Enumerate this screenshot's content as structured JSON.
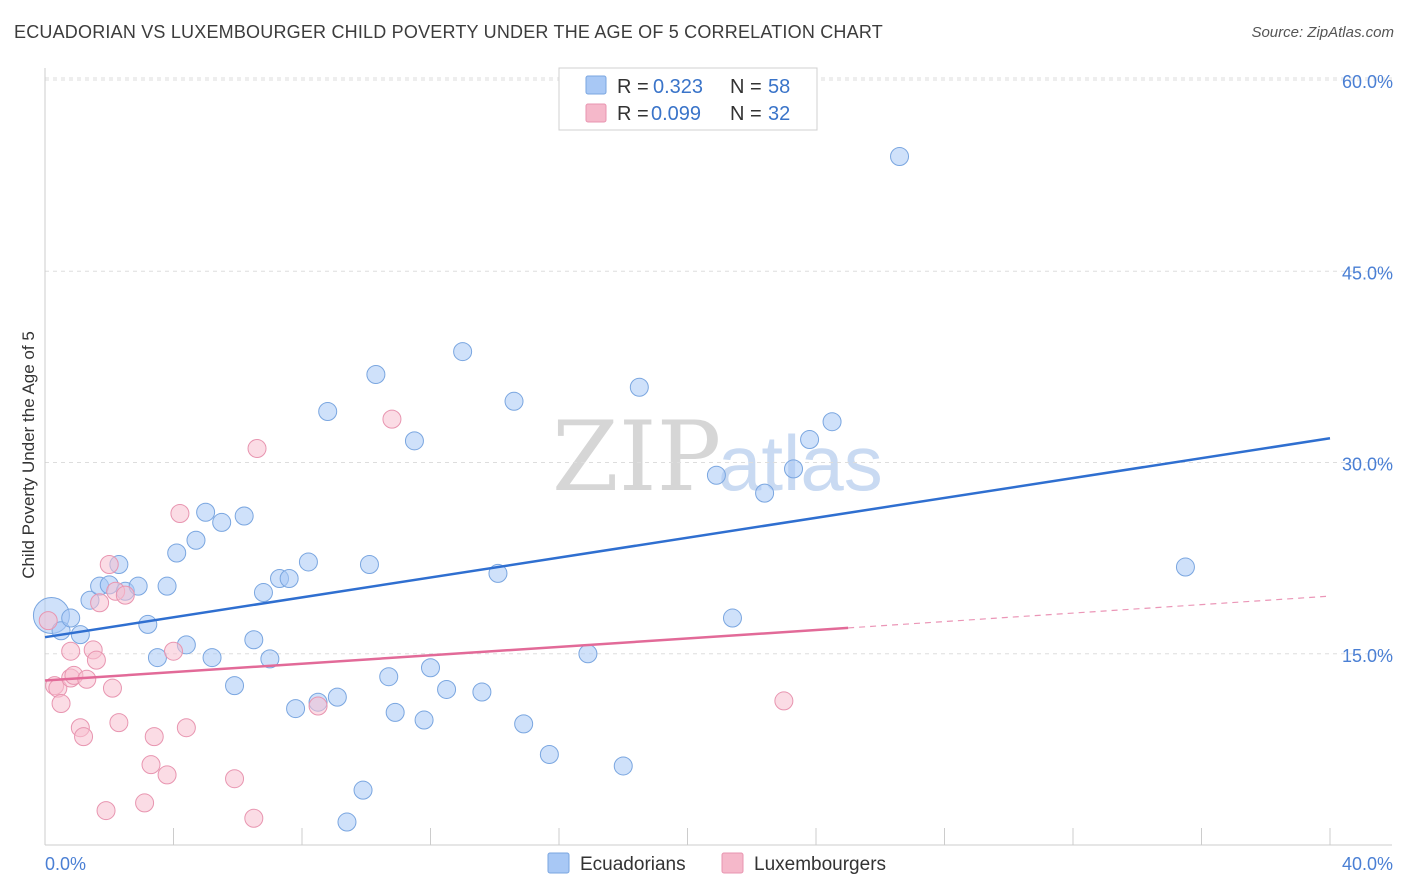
{
  "header": {
    "title": "ECUADORIAN VS LUXEMBOURGER CHILD POVERTY UNDER THE AGE OF 5 CORRELATION CHART",
    "source": "Source: ZipAtlas.com"
  },
  "watermark": {
    "zip": "ZIP",
    "atlas": "atlas"
  },
  "legend": {
    "rows": [
      {
        "r_label": "R =",
        "r_value": "0.323",
        "n_label": "N =",
        "n_value": "58",
        "color": "#a8c8f5"
      },
      {
        "r_label": "R =",
        "r_value": "0.099",
        "n_label": "N =",
        "n_value": "32",
        "color": "#f5b8ca"
      }
    ]
  },
  "bottom_legend": [
    "Ecuadorians",
    "Luxembourgers"
  ],
  "colors": {
    "blue_fill": "#a8c8f5",
    "blue_stroke": "#7aa6e0",
    "blue_line": "#2f6fd0",
    "pink_fill": "#f7bfd0",
    "pink_stroke": "#e895b0",
    "pink_line": "#e26a98",
    "grid": "#dddddd",
    "tick_label": "#4a7fd4"
  },
  "chart_data": {
    "type": "scatter",
    "title": "ECUADORIAN VS LUXEMBOURGER CHILD POVERTY UNDER THE AGE OF 5 CORRELATION CHART",
    "xlabel": "",
    "ylabel": "Child Poverty Under the Age of 5",
    "xlim": [
      0,
      40
    ],
    "ylim": [
      0,
      60
    ],
    "x_tick_labels": [
      "0.0%",
      "40.0%"
    ],
    "y_tick_labels": [
      "15.0%",
      "30.0%",
      "45.0%",
      "60.0%"
    ],
    "y_ticks": [
      15,
      30,
      45,
      60
    ],
    "series": [
      {
        "name": "Ecuadorians",
        "R": 0.323,
        "N": 58,
        "trend": {
          "x0": 0,
          "y0": 16.3,
          "x1": 40,
          "y1": 31.9,
          "dashed_from": null
        },
        "points": [
          [
            0.2,
            18.0
          ],
          [
            0.5,
            16.8
          ],
          [
            0.8,
            17.8
          ],
          [
            1.1,
            16.5
          ],
          [
            1.4,
            19.2
          ],
          [
            1.7,
            20.3
          ],
          [
            2.0,
            20.4
          ],
          [
            2.3,
            22.0
          ],
          [
            2.5,
            19.9
          ],
          [
            2.9,
            20.3
          ],
          [
            3.2,
            17.3
          ],
          [
            3.5,
            14.7
          ],
          [
            3.8,
            20.3
          ],
          [
            4.1,
            22.9
          ],
          [
            4.4,
            15.7
          ],
          [
            4.7,
            23.9
          ],
          [
            5.0,
            26.1
          ],
          [
            5.2,
            14.7
          ],
          [
            5.5,
            25.3
          ],
          [
            5.9,
            12.5
          ],
          [
            6.2,
            25.8
          ],
          [
            6.5,
            16.1
          ],
          [
            6.8,
            19.8
          ],
          [
            7.0,
            14.6
          ],
          [
            7.3,
            20.9
          ],
          [
            7.6,
            20.9
          ],
          [
            7.8,
            10.7
          ],
          [
            8.2,
            22.2
          ],
          [
            8.5,
            11.2
          ],
          [
            8.8,
            34.0
          ],
          [
            9.1,
            11.6
          ],
          [
            9.4,
            1.8
          ],
          [
            9.9,
            4.3
          ],
          [
            10.1,
            22.0
          ],
          [
            10.3,
            36.9
          ],
          [
            10.7,
            13.2
          ],
          [
            10.9,
            10.4
          ],
          [
            11.5,
            31.7
          ],
          [
            11.8,
            9.8
          ],
          [
            12.0,
            13.9
          ],
          [
            12.5,
            12.2
          ],
          [
            13.0,
            38.7
          ],
          [
            13.6,
            12.0
          ],
          [
            14.1,
            21.3
          ],
          [
            14.6,
            34.8
          ],
          [
            14.9,
            9.5
          ],
          [
            15.7,
            7.1
          ],
          [
            16.9,
            15.0
          ],
          [
            18.0,
            6.2
          ],
          [
            18.5,
            35.9
          ],
          [
            20.9,
            29.0
          ],
          [
            21.4,
            17.8
          ],
          [
            22.4,
            27.6
          ],
          [
            23.3,
            29.5
          ],
          [
            23.8,
            31.8
          ],
          [
            24.5,
            33.2
          ],
          [
            26.6,
            54.0
          ],
          [
            35.5,
            21.8
          ]
        ]
      },
      {
        "name": "Luxembourgers",
        "R": 0.099,
        "N": 32,
        "trend": {
          "x0": 0,
          "y0": 12.9,
          "x1": 40,
          "y1": 19.5,
          "dashed_from": 25
        },
        "points": [
          [
            0.1,
            17.6
          ],
          [
            0.3,
            12.5
          ],
          [
            0.4,
            12.3
          ],
          [
            0.5,
            11.1
          ],
          [
            0.8,
            13.1
          ],
          [
            0.8,
            15.2
          ],
          [
            0.9,
            13.3
          ],
          [
            1.1,
            9.2
          ],
          [
            1.2,
            8.5
          ],
          [
            1.3,
            13.0
          ],
          [
            1.5,
            15.3
          ],
          [
            1.6,
            14.5
          ],
          [
            1.7,
            19.0
          ],
          [
            1.9,
            2.7
          ],
          [
            2.0,
            22.0
          ],
          [
            2.1,
            12.3
          ],
          [
            2.2,
            19.9
          ],
          [
            2.3,
            9.6
          ],
          [
            2.5,
            19.6
          ],
          [
            3.1,
            3.3
          ],
          [
            3.3,
            6.3
          ],
          [
            3.4,
            8.5
          ],
          [
            3.8,
            5.5
          ],
          [
            4.0,
            15.2
          ],
          [
            4.2,
            26.0
          ],
          [
            4.4,
            9.2
          ],
          [
            5.9,
            5.2
          ],
          [
            6.5,
            2.1
          ],
          [
            6.6,
            31.1
          ],
          [
            8.5,
            10.9
          ],
          [
            10.8,
            33.4
          ],
          [
            23.0,
            11.3
          ]
        ]
      }
    ]
  }
}
